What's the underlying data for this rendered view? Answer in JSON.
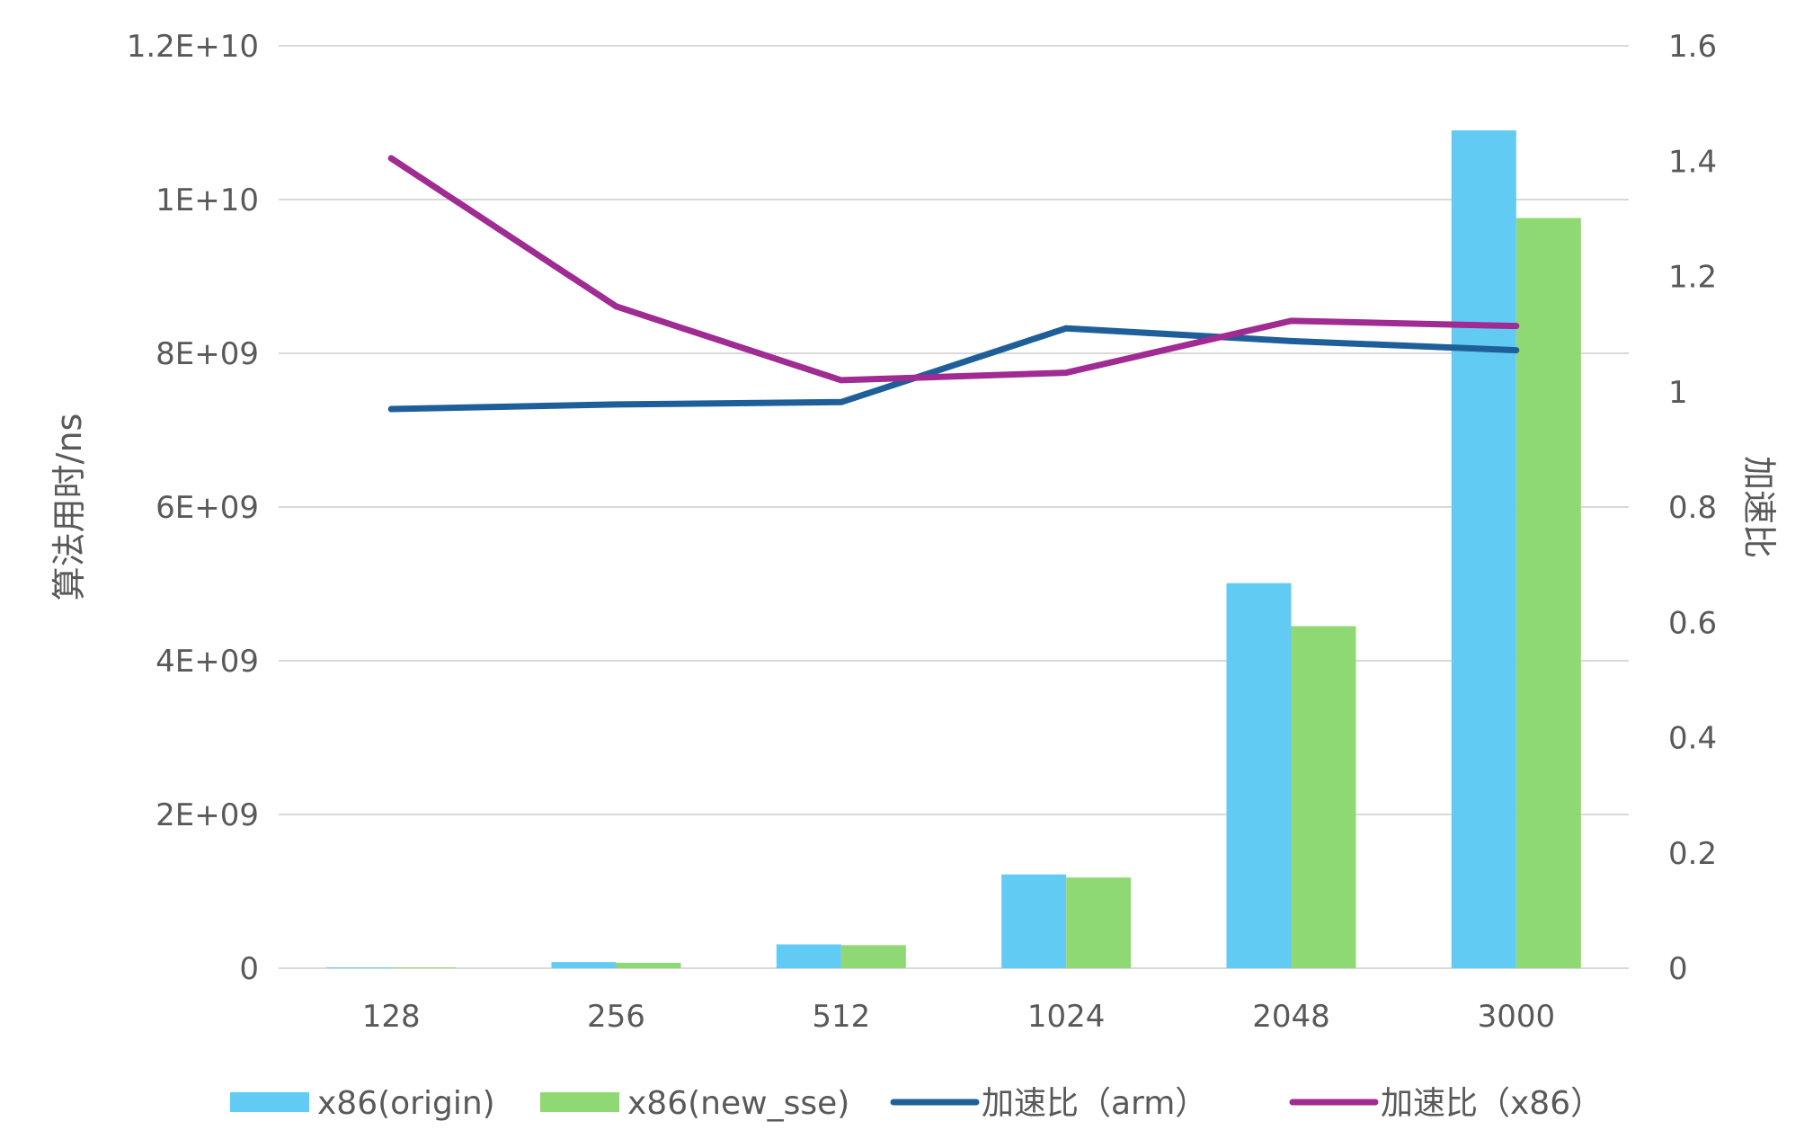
{
  "chart_data": {
    "type": "bar",
    "categories": [
      "128",
      "256",
      "512",
      "1024",
      "2048",
      "3000"
    ],
    "series": [
      {
        "name": "x86(origin)",
        "kind": "bar",
        "axis": "left",
        "color": "#61cbf4",
        "values": [
          10000000,
          80000000,
          310000000,
          1220000000,
          5010000000,
          10900000000
        ]
      },
      {
        "name": "x86(new_sse)",
        "kind": "bar",
        "axis": "left",
        "color": "#8ed973",
        "values": [
          9000000,
          70000000,
          300000000,
          1180000000,
          4450000000,
          9760000000
        ]
      },
      {
        "name": "加速比（arm）",
        "kind": "line",
        "axis": "right",
        "color": "#1f5f99",
        "values": [
          0.97,
          0.978,
          0.982,
          1.11,
          1.088,
          1.072
        ]
      },
      {
        "name": "加速比（x86）",
        "kind": "line",
        "axis": "right",
        "color": "#a02b93",
        "values": [
          1.405,
          1.148,
          1.02,
          1.033,
          1.123,
          1.114
        ]
      }
    ],
    "y_left": {
      "label": "算法用时/ns",
      "range": [
        0,
        12000000000
      ],
      "ticks": [
        0,
        2000000000,
        4000000000,
        6000000000,
        8000000000,
        10000000000,
        12000000000
      ],
      "tick_labels": [
        "0",
        "2E+09",
        "4E+09",
        "6E+09",
        "8E+09",
        "1E+10",
        "1.2E+10"
      ]
    },
    "y_right": {
      "label": "加速比",
      "range": [
        0,
        1.6
      ],
      "ticks": [
        0,
        0.2,
        0.4,
        0.6,
        0.8,
        1,
        1.2,
        1.4,
        1.6
      ],
      "tick_labels": [
        "0",
        "0.2",
        "0.4",
        "0.6",
        "0.8",
        "1",
        "1.2",
        "1.4",
        "1.6"
      ]
    },
    "grid": true,
    "legend": "bottom"
  }
}
